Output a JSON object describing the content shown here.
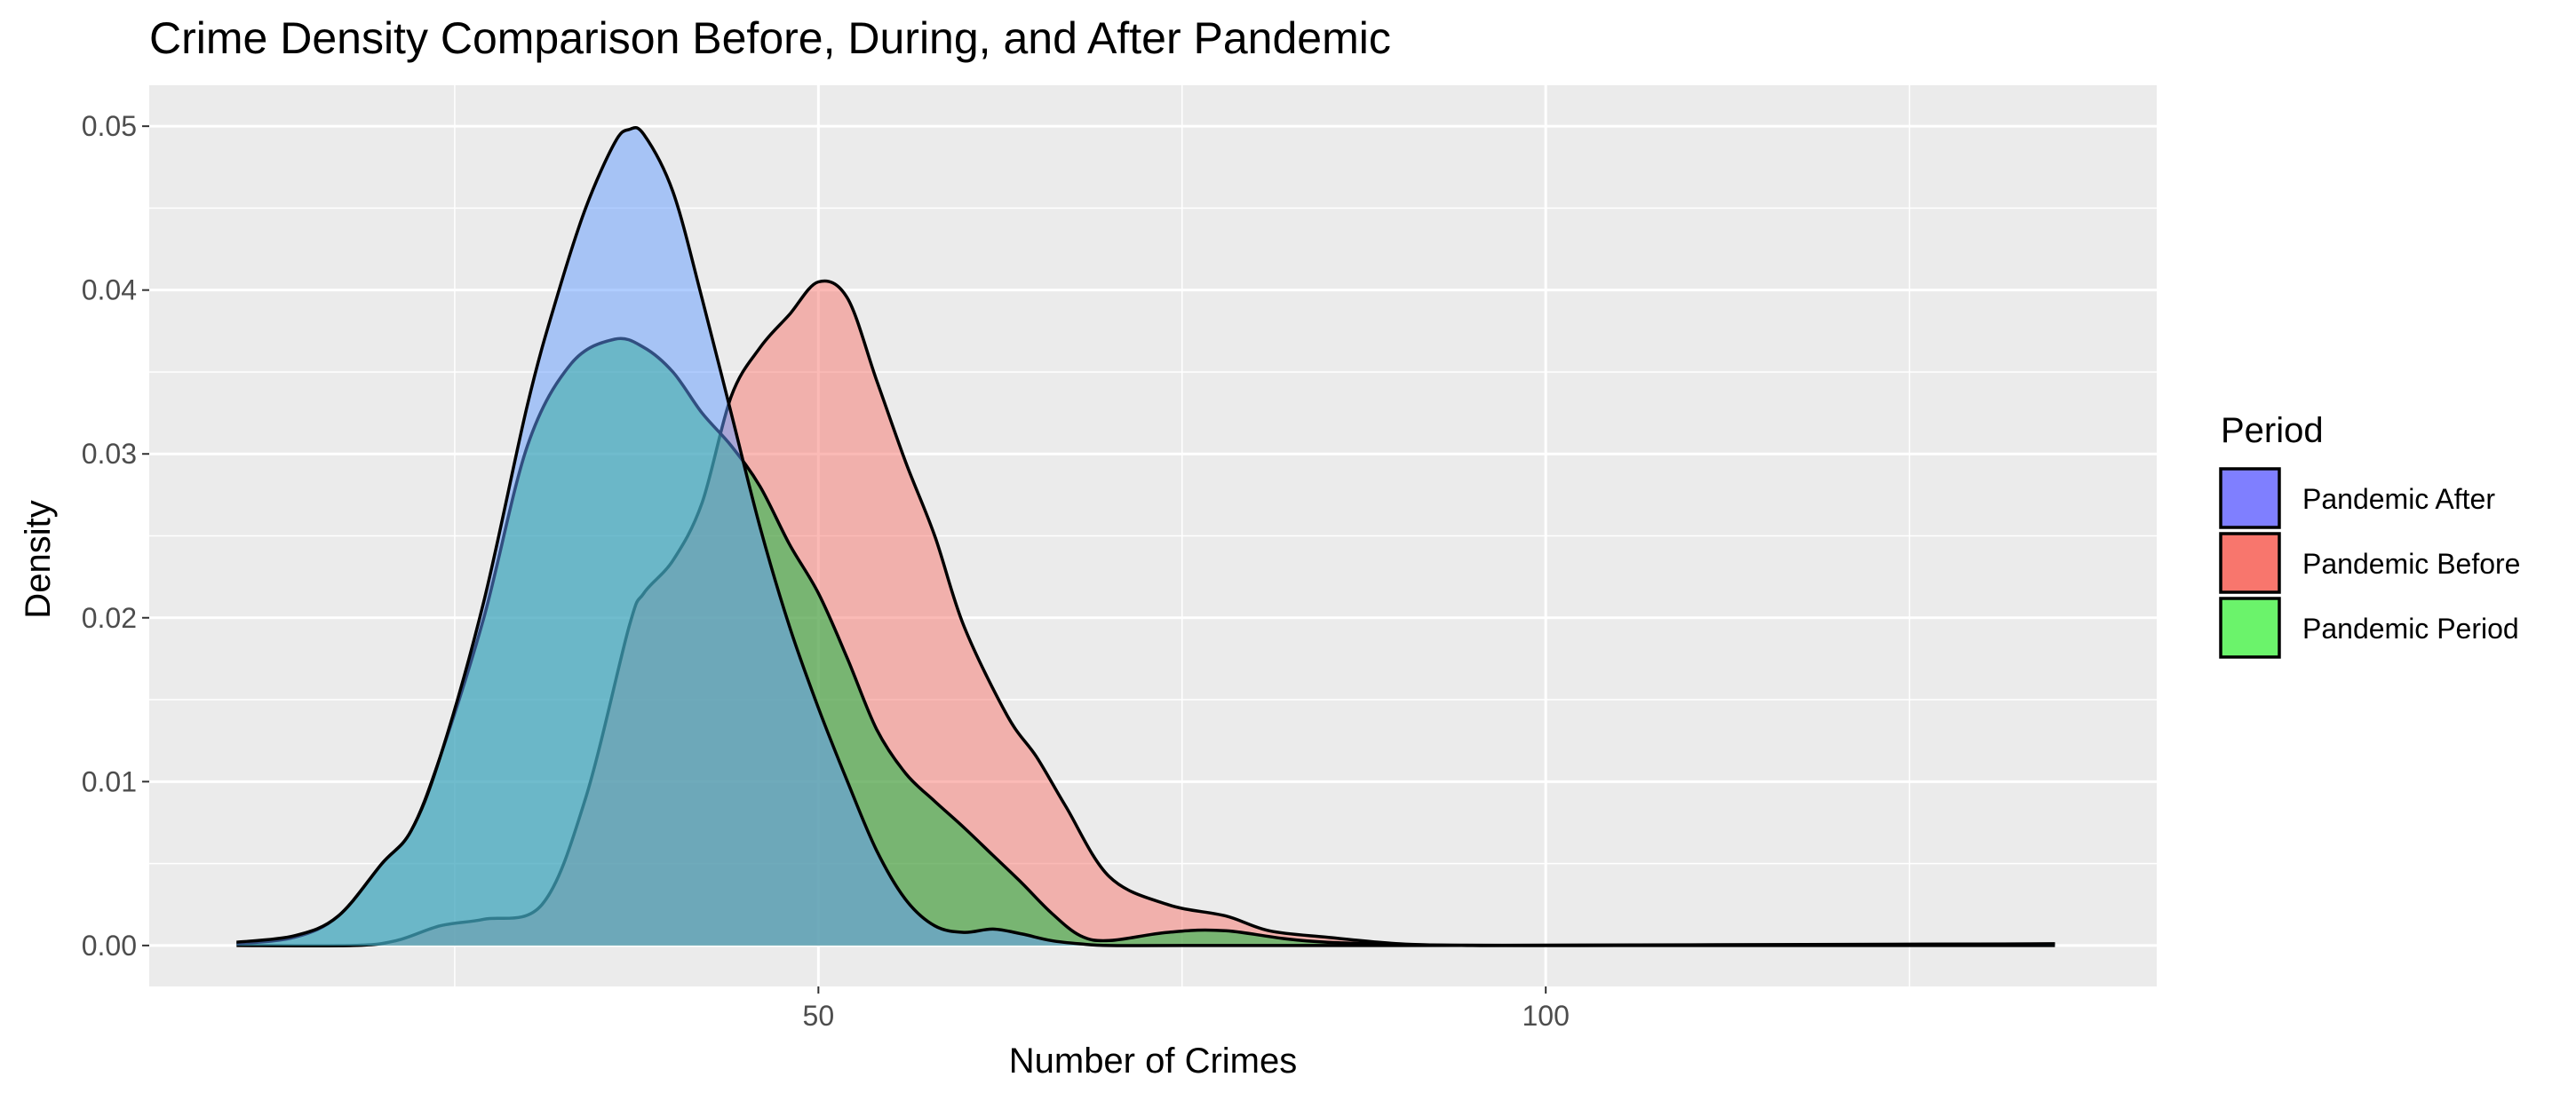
{
  "chart_data": {
    "type": "area",
    "subtype": "density",
    "title": "Crime Density Comparison Before, During, and After Pandemic",
    "xlabel": "Number of Crimes",
    "ylabel": "Density",
    "xlim": [
      4,
      142
    ],
    "ylim": [
      -0.0025,
      0.0525
    ],
    "x_ticks": [
      50,
      100
    ],
    "x_tick_labels": [
      "50",
      "100"
    ],
    "y_ticks": [
      0,
      0.01,
      0.02,
      0.03,
      0.04,
      0.05
    ],
    "y_tick_labels": [
      "0.00",
      "0.01",
      "0.02",
      "0.03",
      "0.04",
      "0.05"
    ],
    "grid": true,
    "legend": {
      "title": "Period",
      "position": "right"
    },
    "series": [
      {
        "name": "Pandemic Before",
        "color": "#F8766D",
        "x": [
          10,
          18,
          21,
          24,
          27,
          31,
          34,
          37,
          38,
          40,
          42,
          44,
          46,
          48,
          50,
          52,
          54,
          56,
          58,
          60,
          63,
          65,
          67,
          70,
          74,
          78,
          81,
          85,
          90,
          95,
          100,
          135
        ],
        "y": [
          0,
          0,
          0.0003,
          0.0012,
          0.0016,
          0.0025,
          0.009,
          0.0195,
          0.0215,
          0.0235,
          0.027,
          0.0335,
          0.0365,
          0.0385,
          0.0405,
          0.0395,
          0.0345,
          0.0295,
          0.025,
          0.0195,
          0.014,
          0.0115,
          0.0085,
          0.0042,
          0.0025,
          0.0018,
          0.0009,
          0.0005,
          0.0001,
          0,
          0,
          0
        ]
      },
      {
        "name": "Pandemic Period",
        "color": "#00BA38",
        "x": [
          10,
          14,
          17,
          20,
          22,
          24,
          27,
          30,
          33,
          36,
          38,
          40,
          42,
          44,
          46,
          48,
          50,
          52,
          54,
          56,
          58,
          60,
          62,
          64,
          66,
          68,
          70,
          74,
          78,
          85,
          100,
          135
        ],
        "y": [
          0.0001,
          0.0005,
          0.0018,
          0.005,
          0.007,
          0.0115,
          0.02,
          0.0305,
          0.0355,
          0.037,
          0.0365,
          0.035,
          0.0325,
          0.0305,
          0.028,
          0.0245,
          0.0215,
          0.0175,
          0.0132,
          0.0105,
          0.0088,
          0.0072,
          0.0055,
          0.0038,
          0.002,
          0.0006,
          0.0003,
          0.0008,
          0.0009,
          0.0002,
          0,
          0.0001
        ]
      },
      {
        "name": "Pandemic After",
        "color": "#619CFF",
        "x": [
          10,
          14,
          17,
          20,
          22,
          24,
          27,
          30,
          32,
          34,
          36,
          37,
          38,
          40,
          42,
          44,
          46,
          48,
          50,
          52,
          54,
          56,
          58,
          60,
          62,
          64,
          66,
          68,
          70,
          75,
          90,
          135
        ],
        "y": [
          0.0002,
          0.0006,
          0.0018,
          0.005,
          0.007,
          0.0115,
          0.021,
          0.033,
          0.0395,
          0.045,
          0.049,
          0.0498,
          0.0495,
          0.046,
          0.0395,
          0.0325,
          0.0255,
          0.0195,
          0.0145,
          0.01,
          0.0058,
          0.0028,
          0.0012,
          0.0008,
          0.001,
          0.0007,
          0.0003,
          0.0001,
          0,
          0,
          0,
          0.0001
        ]
      }
    ]
  },
  "legend_items": [
    {
      "label": "Pandemic After",
      "color": "#7F7FFF"
    },
    {
      "label": "Pandemic Before",
      "color": "#F8766D"
    },
    {
      "label": "Pandemic Period",
      "color": "#6BF36B"
    }
  ],
  "colors": {
    "panel_background": "#EBEBEB",
    "grid": "#FFFFFF",
    "outline": "#000000"
  }
}
